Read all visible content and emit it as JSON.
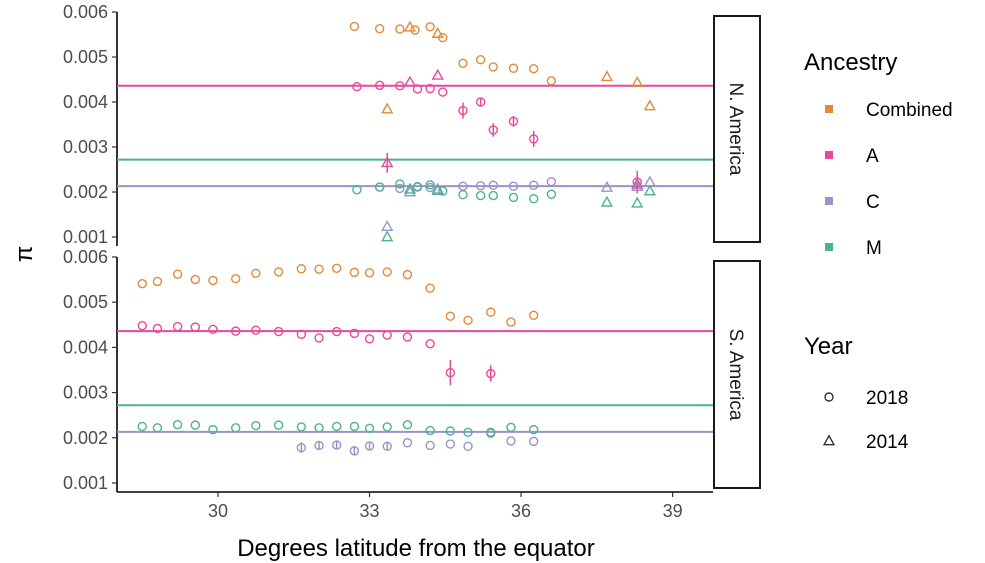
{
  "chart_data": {
    "type": "scatter",
    "xlabel": "Degrees latitude from the equator",
    "ylabel": "π",
    "xlim": [
      28.0,
      39.8
    ],
    "ylim": [
      0.0008,
      0.006
    ],
    "x_ticks": [
      30,
      33,
      36,
      39
    ],
    "x_tick_labels": [
      "30",
      "33",
      "36",
      "39"
    ],
    "y_ticks": [
      0.001,
      0.002,
      0.003,
      0.004,
      0.005,
      0.006
    ],
    "y_tick_labels": [
      "0.001",
      "0.002",
      "0.003",
      "0.004",
      "0.005",
      "0.006"
    ],
    "grid": false,
    "legend_position": "right",
    "colors": {
      "Combined": "#e08a3c",
      "A": "#e8489c",
      "C": "#9b92cc",
      "M": "#4cb38f"
    },
    "legend": {
      "ancestry_title": "Ancestry",
      "ancestry": [
        {
          "key": "Combined",
          "label": "Combined"
        },
        {
          "key": "A",
          "label": "A"
        },
        {
          "key": "C",
          "label": "C"
        },
        {
          "key": "M",
          "label": "M"
        }
      ],
      "year_title": "Year",
      "years": [
        {
          "label": "2018",
          "shape": "circle"
        },
        {
          "label": "2014",
          "shape": "triangle"
        }
      ]
    },
    "panels": [
      {
        "label": "N. America",
        "hlines": [
          {
            "series": "A",
            "y": 0.00436
          },
          {
            "series": "M",
            "y": 0.00272
          },
          {
            "series": "C",
            "y": 0.00213
          }
        ],
        "series": [
          {
            "ancestry": "Combined",
            "year": "2018",
            "points": [
              [
                32.7,
                0.00568
              ],
              [
                33.2,
                0.00563
              ],
              [
                33.6,
                0.00562
              ],
              [
                33.9,
                0.0056
              ],
              [
                34.2,
                0.00567
              ],
              [
                34.45,
                0.00543
              ],
              [
                34.85,
                0.00486
              ],
              [
                35.2,
                0.00494
              ],
              [
                35.45,
                0.00478
              ],
              [
                35.85,
                0.00475
              ],
              [
                36.25,
                0.00474
              ],
              [
                36.6,
                0.00447
              ]
            ]
          },
          {
            "ancestry": "Combined",
            "year": "2014",
            "points": [
              [
                33.35,
                0.00384
              ],
              [
                33.8,
                0.00566
              ],
              [
                34.35,
                0.00552
              ],
              [
                37.7,
                0.00456
              ],
              [
                38.3,
                0.00443
              ],
              [
                38.55,
                0.00391
              ]
            ]
          },
          {
            "ancestry": "A",
            "year": "2018",
            "points": [
              [
                32.75,
                0.00434
              ],
              [
                33.2,
                0.00437
              ],
              [
                33.6,
                0.00436
              ],
              [
                33.95,
                0.00429
              ],
              [
                34.2,
                0.0043
              ],
              [
                34.45,
                0.00422
              ],
              [
                34.85,
                0.00381
              ],
              [
                35.2,
                0.004
              ],
              [
                35.45,
                0.00338
              ],
              [
                35.85,
                0.00357
              ],
              [
                36.25,
                0.00318
              ],
              [
                38.3,
                0.00222
              ]
            ],
            "errors": [
              3e-05,
              3e-05,
              3e-05,
              3e-05,
              3e-05,
              3e-05,
              0.00018,
              8e-05,
              0.00015,
              0.00012,
              0.00018,
              0.00025
            ]
          },
          {
            "ancestry": "A",
            "year": "2014",
            "points": [
              [
                33.35,
                0.00265
              ],
              [
                33.8,
                0.00444
              ],
              [
                34.35,
                0.00459
              ],
              [
                38.3,
                0.00217
              ]
            ],
            "errors": [
              0.00022,
              3e-05,
              3e-05,
              3e-05
            ]
          },
          {
            "ancestry": "C",
            "year": "2018",
            "points": [
              [
                33.2,
                0.00211
              ],
              [
                33.6,
                0.00208
              ],
              [
                33.95,
                0.00211
              ],
              [
                34.2,
                0.0021
              ],
              [
                34.85,
                0.00213
              ],
              [
                35.2,
                0.00214
              ],
              [
                35.45,
                0.00215
              ],
              [
                35.85,
                0.00213
              ],
              [
                36.25,
                0.00215
              ],
              [
                36.6,
                0.00223
              ]
            ]
          },
          {
            "ancestry": "C",
            "year": "2014",
            "points": [
              [
                33.35,
                0.00123
              ],
              [
                33.8,
                0.002
              ],
              [
                34.35,
                0.00206
              ],
              [
                37.7,
                0.0021
              ],
              [
                38.3,
                0.00212
              ],
              [
                38.55,
                0.00222
              ]
            ]
          },
          {
            "ancestry": "M",
            "year": "2018",
            "points": [
              [
                32.75,
                0.00205
              ],
              [
                33.2,
                0.00211
              ],
              [
                33.6,
                0.00218
              ],
              [
                33.95,
                0.00212
              ],
              [
                34.2,
                0.00216
              ],
              [
                34.45,
                0.00202
              ],
              [
                34.85,
                0.00194
              ],
              [
                35.2,
                0.00192
              ],
              [
                35.45,
                0.00192
              ],
              [
                35.85,
                0.00188
              ],
              [
                36.25,
                0.00185
              ],
              [
                36.6,
                0.00195
              ]
            ]
          },
          {
            "ancestry": "M",
            "year": "2014",
            "points": [
              [
                33.35,
                0.001
              ],
              [
                33.8,
                0.00206
              ],
              [
                34.35,
                0.00203
              ],
              [
                37.7,
                0.00177
              ],
              [
                38.3,
                0.00175
              ],
              [
                38.55,
                0.00202
              ]
            ]
          }
        ]
      },
      {
        "label": "S. America",
        "hlines": [
          {
            "series": "A",
            "y": 0.00436
          },
          {
            "series": "M",
            "y": 0.00272
          },
          {
            "series": "C",
            "y": 0.00213
          }
        ],
        "series": [
          {
            "ancestry": "Combined",
            "year": "2018",
            "points": [
              [
                28.5,
                0.00541
              ],
              [
                28.8,
                0.00546
              ],
              [
                29.2,
                0.00562
              ],
              [
                29.55,
                0.0055
              ],
              [
                29.9,
                0.00548
              ],
              [
                30.35,
                0.00552
              ],
              [
                30.75,
                0.00564
              ],
              [
                31.2,
                0.00567
              ],
              [
                31.65,
                0.00574
              ],
              [
                32.0,
                0.00573
              ],
              [
                32.35,
                0.00575
              ],
              [
                32.7,
                0.00566
              ],
              [
                33.0,
                0.00565
              ],
              [
                33.35,
                0.00567
              ],
              [
                33.75,
                0.00561
              ],
              [
                34.2,
                0.00531
              ],
              [
                34.6,
                0.00469
              ],
              [
                34.95,
                0.0046
              ],
              [
                35.4,
                0.00478
              ],
              [
                35.8,
                0.00456
              ],
              [
                36.25,
                0.00471
              ]
            ]
          },
          {
            "ancestry": "A",
            "year": "2018",
            "points": [
              [
                28.5,
                0.00448
              ],
              [
                28.8,
                0.00442
              ],
              [
                29.2,
                0.00446
              ],
              [
                29.55,
                0.00445
              ],
              [
                29.9,
                0.0044
              ],
              [
                30.35,
                0.00436
              ],
              [
                30.75,
                0.00438
              ],
              [
                31.2,
                0.00435
              ],
              [
                31.65,
                0.00429
              ],
              [
                32.0,
                0.00421
              ],
              [
                32.35,
                0.00435
              ],
              [
                32.7,
                0.00431
              ],
              [
                33.0,
                0.00419
              ],
              [
                33.35,
                0.00427
              ],
              [
                33.75,
                0.00423
              ],
              [
                34.2,
                0.00408
              ],
              [
                34.6,
                0.00344
              ],
              [
                35.4,
                0.00342
              ]
            ],
            "errors": [
              3e-05,
              3e-05,
              3e-05,
              3e-05,
              3e-05,
              3e-05,
              3e-05,
              3e-05,
              3e-05,
              3e-05,
              3e-05,
              3e-05,
              3e-05,
              3e-05,
              3e-05,
              3e-05,
              0.00028,
              0.00018
            ]
          },
          {
            "ancestry": "C",
            "year": "2018",
            "points": [
              [
                31.65,
                0.00178
              ],
              [
                32.0,
                0.00183
              ],
              [
                32.35,
                0.00184
              ],
              [
                32.7,
                0.00171
              ],
              [
                33.0,
                0.00182
              ],
              [
                33.35,
                0.00181
              ],
              [
                33.75,
                0.00189
              ],
              [
                34.2,
                0.00183
              ],
              [
                34.6,
                0.00186
              ],
              [
                34.95,
                0.00181
              ],
              [
                35.4,
                0.0021
              ],
              [
                35.8,
                0.00193
              ],
              [
                36.25,
                0.00192
              ]
            ],
            "errors": [
              0.00012,
              8e-05,
              8e-05,
              0.0001,
              8e-05,
              8e-05,
              5e-05,
              5e-05,
              5e-05,
              5e-05,
              3e-05,
              3e-05,
              3e-05
            ]
          },
          {
            "ancestry": "M",
            "year": "2018",
            "points": [
              [
                28.5,
                0.00225
              ],
              [
                28.8,
                0.00222
              ],
              [
                29.2,
                0.00229
              ],
              [
                29.55,
                0.00228
              ],
              [
                29.9,
                0.00218
              ],
              [
                30.35,
                0.00222
              ],
              [
                30.75,
                0.00227
              ],
              [
                31.2,
                0.00228
              ],
              [
                31.65,
                0.00224
              ],
              [
                32.0,
                0.00222
              ],
              [
                32.35,
                0.00225
              ],
              [
                32.7,
                0.00225
              ],
              [
                33.0,
                0.00221
              ],
              [
                33.35,
                0.00224
              ],
              [
                33.75,
                0.00229
              ],
              [
                34.2,
                0.00216
              ],
              [
                34.6,
                0.00215
              ],
              [
                34.95,
                0.00212
              ],
              [
                35.4,
                0.00212
              ],
              [
                35.8,
                0.00223
              ],
              [
                36.25,
                0.00218
              ]
            ]
          }
        ]
      }
    ]
  }
}
